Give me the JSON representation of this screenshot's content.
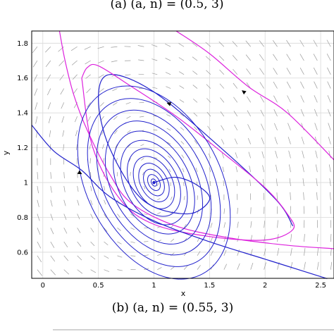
{
  "captions": {
    "top": "(a) (a, n) = (0.5, 3)",
    "bottom": "(b) (a, n) = (0.55, 3)"
  },
  "chart_data": {
    "type": "line",
    "title": "",
    "xlabel": "x",
    "ylabel": "y",
    "xlim": [
      -0.1,
      2.62
    ],
    "ylim": [
      0.45,
      1.87
    ],
    "xticks": [
      "0",
      "0.5",
      "1",
      "1.5",
      "2",
      "2.5"
    ],
    "yticks": [
      "0.6",
      "0.8",
      "1",
      "1.2",
      "1.4",
      "1.6",
      "1.8"
    ],
    "grid": true,
    "equilibrium": [
      1.0,
      1.0
    ],
    "vector_field": true,
    "colors": {
      "inner_orbit": "#2222cc",
      "outer_orbit": "#dd22dd",
      "arrows": "#9a9a9a"
    },
    "series": [
      {
        "color": "#2222cc",
        "kind": "spiral",
        "points": [
          [
            1.0,
            1.0
          ],
          [
            1.2,
            1.03
          ],
          [
            1.4,
            0.98
          ],
          [
            1.5,
            0.9
          ],
          [
            1.3,
            0.82
          ],
          [
            0.9,
            0.9
          ],
          [
            0.6,
            1.2
          ],
          [
            0.5,
            1.48
          ],
          [
            0.6,
            1.62
          ],
          [
            1.0,
            1.52
          ],
          [
            1.6,
            1.2
          ],
          [
            2.1,
            0.9
          ],
          [
            2.25,
            0.75
          ]
        ]
      },
      {
        "color": "#dd22dd",
        "kind": "limit-cycle",
        "points": [
          [
            0.35,
            1.6
          ],
          [
            0.4,
            1.66
          ],
          [
            0.5,
            1.67
          ],
          [
            0.8,
            1.55
          ],
          [
            1.2,
            1.38
          ],
          [
            1.6,
            1.18
          ],
          [
            2.0,
            0.97
          ],
          [
            2.2,
            0.82
          ],
          [
            2.25,
            0.73
          ],
          [
            2.0,
            0.67
          ],
          [
            1.5,
            0.69
          ],
          [
            1.0,
            0.76
          ],
          [
            0.7,
            0.9
          ],
          [
            0.45,
            1.2
          ],
          [
            0.35,
            1.6
          ]
        ]
      },
      {
        "color": "#dd22dd",
        "kind": "trajectory",
        "points": [
          [
            0.15,
            1.87
          ],
          [
            0.2,
            1.7
          ],
          [
            0.28,
            1.5
          ],
          [
            0.4,
            1.3
          ],
          [
            0.6,
            1.05
          ],
          [
            0.8,
            0.88
          ],
          [
            1.2,
            0.75
          ],
          [
            1.7,
            0.68
          ],
          [
            2.2,
            0.64
          ],
          [
            2.62,
            0.62
          ]
        ]
      },
      {
        "color": "#dd22dd",
        "kind": "trajectory",
        "points": [
          [
            1.2,
            1.87
          ],
          [
            1.5,
            1.74
          ],
          [
            1.85,
            1.55
          ],
          [
            2.2,
            1.4
          ],
          [
            2.62,
            1.13
          ]
        ]
      },
      {
        "color": "#2222cc",
        "kind": "trajectory",
        "points": [
          [
            -0.1,
            1.33
          ],
          [
            0.1,
            1.18
          ],
          [
            0.35,
            1.07
          ],
          [
            0.6,
            0.92
          ],
          [
            1.0,
            0.78
          ],
          [
            1.5,
            0.66
          ],
          [
            2.0,
            0.56
          ],
          [
            2.5,
            0.46
          ],
          [
            2.55,
            0.45
          ]
        ]
      }
    ]
  }
}
